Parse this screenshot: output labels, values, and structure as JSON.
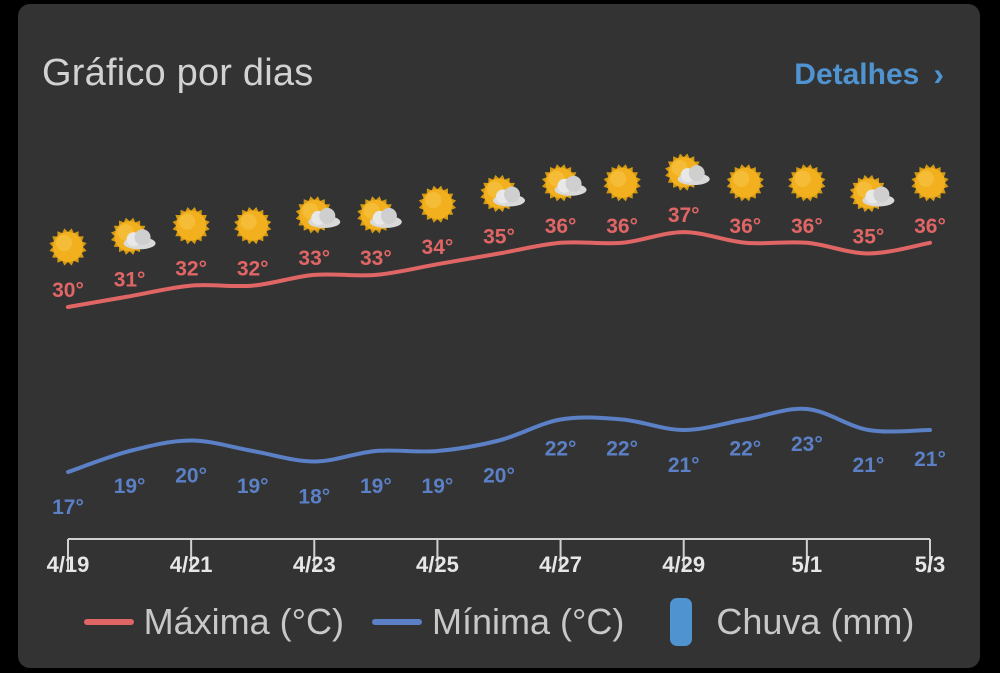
{
  "header": {
    "title": "Gráfico por dias",
    "details_label": "Detalhes",
    "details_chevron": "›"
  },
  "colors": {
    "max": "#e06666",
    "min": "#5b80c6",
    "rain": "#4f93d0",
    "sun": "#f2b01e",
    "axis": "#d0d0d0"
  },
  "legend": {
    "max_label": "Máxima (°C)",
    "min_label": "Mínima (°C)",
    "rain_label": "Chuva (mm)"
  },
  "chart_data": {
    "type": "line",
    "x": [
      "4/19",
      "4/20",
      "4/21",
      "4/22",
      "4/23",
      "4/24",
      "4/25",
      "4/26",
      "4/27",
      "4/28",
      "4/29",
      "4/30",
      "5/1",
      "5/2",
      "5/3"
    ],
    "x_tick_labels": [
      "4/19",
      "4/21",
      "4/23",
      "4/25",
      "4/27",
      "4/29",
      "5/1",
      "5/3"
    ],
    "series": [
      {
        "name": "Máxima (°C)",
        "values": [
          30,
          31,
          32,
          32,
          33,
          33,
          34,
          35,
          36,
          36,
          37,
          36,
          36,
          35,
          36
        ]
      },
      {
        "name": "Mínima (°C)",
        "values": [
          17,
          19,
          20,
          19,
          18,
          19,
          19,
          20,
          22,
          22,
          21,
          22,
          23,
          21,
          21
        ]
      }
    ],
    "temp_labels_max": [
      "30°",
      "31°",
      "32°",
      "32°",
      "33°",
      "33°",
      "34°",
      "35°",
      "36°",
      "36°",
      "37°",
      "36°",
      "36°",
      "35°",
      "36°"
    ],
    "temp_labels_min": [
      "17°",
      "19°",
      "20°",
      "19°",
      "18°",
      "19°",
      "19°",
      "20°",
      "22°",
      "22°",
      "21°",
      "22°",
      "23°",
      "21°",
      "21°"
    ],
    "icons": [
      "sun-icon",
      "partly-cloudy-icon",
      "sun-icon",
      "sun-icon",
      "partly-cloudy-icon",
      "partly-cloudy-icon",
      "sun-icon",
      "partly-cloudy-icon",
      "partly-cloudy-icon",
      "sun-icon",
      "partly-cloudy-icon",
      "sun-icon",
      "sun-icon",
      "partly-cloudy-icon",
      "sun-icon"
    ],
    "grid": false,
    "legend_position": "bottom"
  }
}
